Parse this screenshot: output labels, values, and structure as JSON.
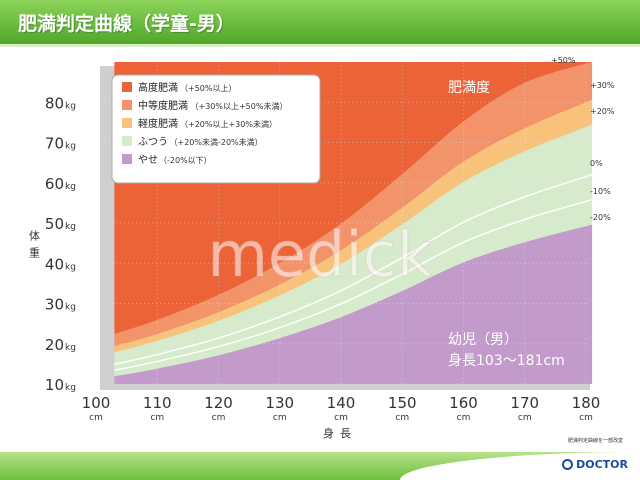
{
  "header": {
    "title": "肥満判定曲線（学童-男）"
  },
  "source_note": "肥満判定曲線を一部改変",
  "logo": {
    "text": "DOCTOR"
  },
  "watermark": "medick",
  "chart_data": {
    "type": "area",
    "title": "",
    "ylabel": "体重",
    "xlabel": "身長",
    "xlim": [
      100,
      180
    ],
    "ylim": [
      10,
      90
    ],
    "x_ticks": [
      100,
      110,
      120,
      130,
      140,
      150,
      160,
      170,
      180
    ],
    "x_tick_labels": [
      "100",
      "110",
      "120",
      "130",
      "140",
      "150",
      "160",
      "170",
      "180"
    ],
    "x_tick_unit": "cm",
    "y_ticks": [
      10,
      20,
      30,
      40,
      50,
      60,
      70,
      80
    ],
    "y_tick_labels": [
      "10",
      "20",
      "30",
      "40",
      "50",
      "60",
      "70",
      "80"
    ],
    "y_tick_unit": "kg",
    "x": [
      103,
      110,
      120,
      130,
      140,
      150,
      160,
      170,
      181
    ],
    "curves": [
      {
        "label": "+50%",
        "values": [
          22.4,
          25.9,
          32.1,
          40.0,
          49.8,
          62.1,
          75.2,
          84.8,
          93.0
        ]
      },
      {
        "label": "+30%",
        "values": [
          19.4,
          22.4,
          27.8,
          34.7,
          43.2,
          53.8,
          65.2,
          73.5,
          80.6
        ]
      },
      {
        "label": "+20%",
        "values": [
          17.9,
          20.7,
          25.7,
          32.0,
          39.8,
          49.7,
          60.2,
          67.8,
          74.4
        ]
      },
      {
        "label": "0%",
        "values": [
          14.9,
          17.3,
          21.4,
          26.7,
          33.2,
          41.4,
          50.2,
          56.5,
          62.0
        ]
      },
      {
        "label": "-10%",
        "values": [
          13.4,
          15.6,
          19.3,
          24.0,
          29.9,
          37.3,
          45.2,
          50.9,
          55.8
        ]
      },
      {
        "label": "-20%",
        "values": [
          11.9,
          13.8,
          17.1,
          21.4,
          26.6,
          33.1,
          40.2,
          45.2,
          49.6
        ]
      }
    ],
    "bands": [
      {
        "name": "高度肥満",
        "range": "（+50%以上）",
        "color": "#ed6338"
      },
      {
        "name": "中等度肥満",
        "range": "（+30%以上+50%未満）",
        "color": "#f3936a"
      },
      {
        "name": "軽度肥満",
        "range": "（+20%以上+30%未満）",
        "color": "#f8c27a"
      },
      {
        "name": "ふつう",
        "range": "（+20%未満-20%未満）",
        "color": "#d6ebcc"
      },
      {
        "name": "やせ",
        "range": "（-20%以下）",
        "color": "#c39bca"
      }
    ],
    "legend": {
      "position": "top-left"
    },
    "annotations": {
      "obesity_label": "肥満度",
      "note_line1": "幼児（男）",
      "note_line2": "身長103〜181cm"
    },
    "grid": true
  }
}
